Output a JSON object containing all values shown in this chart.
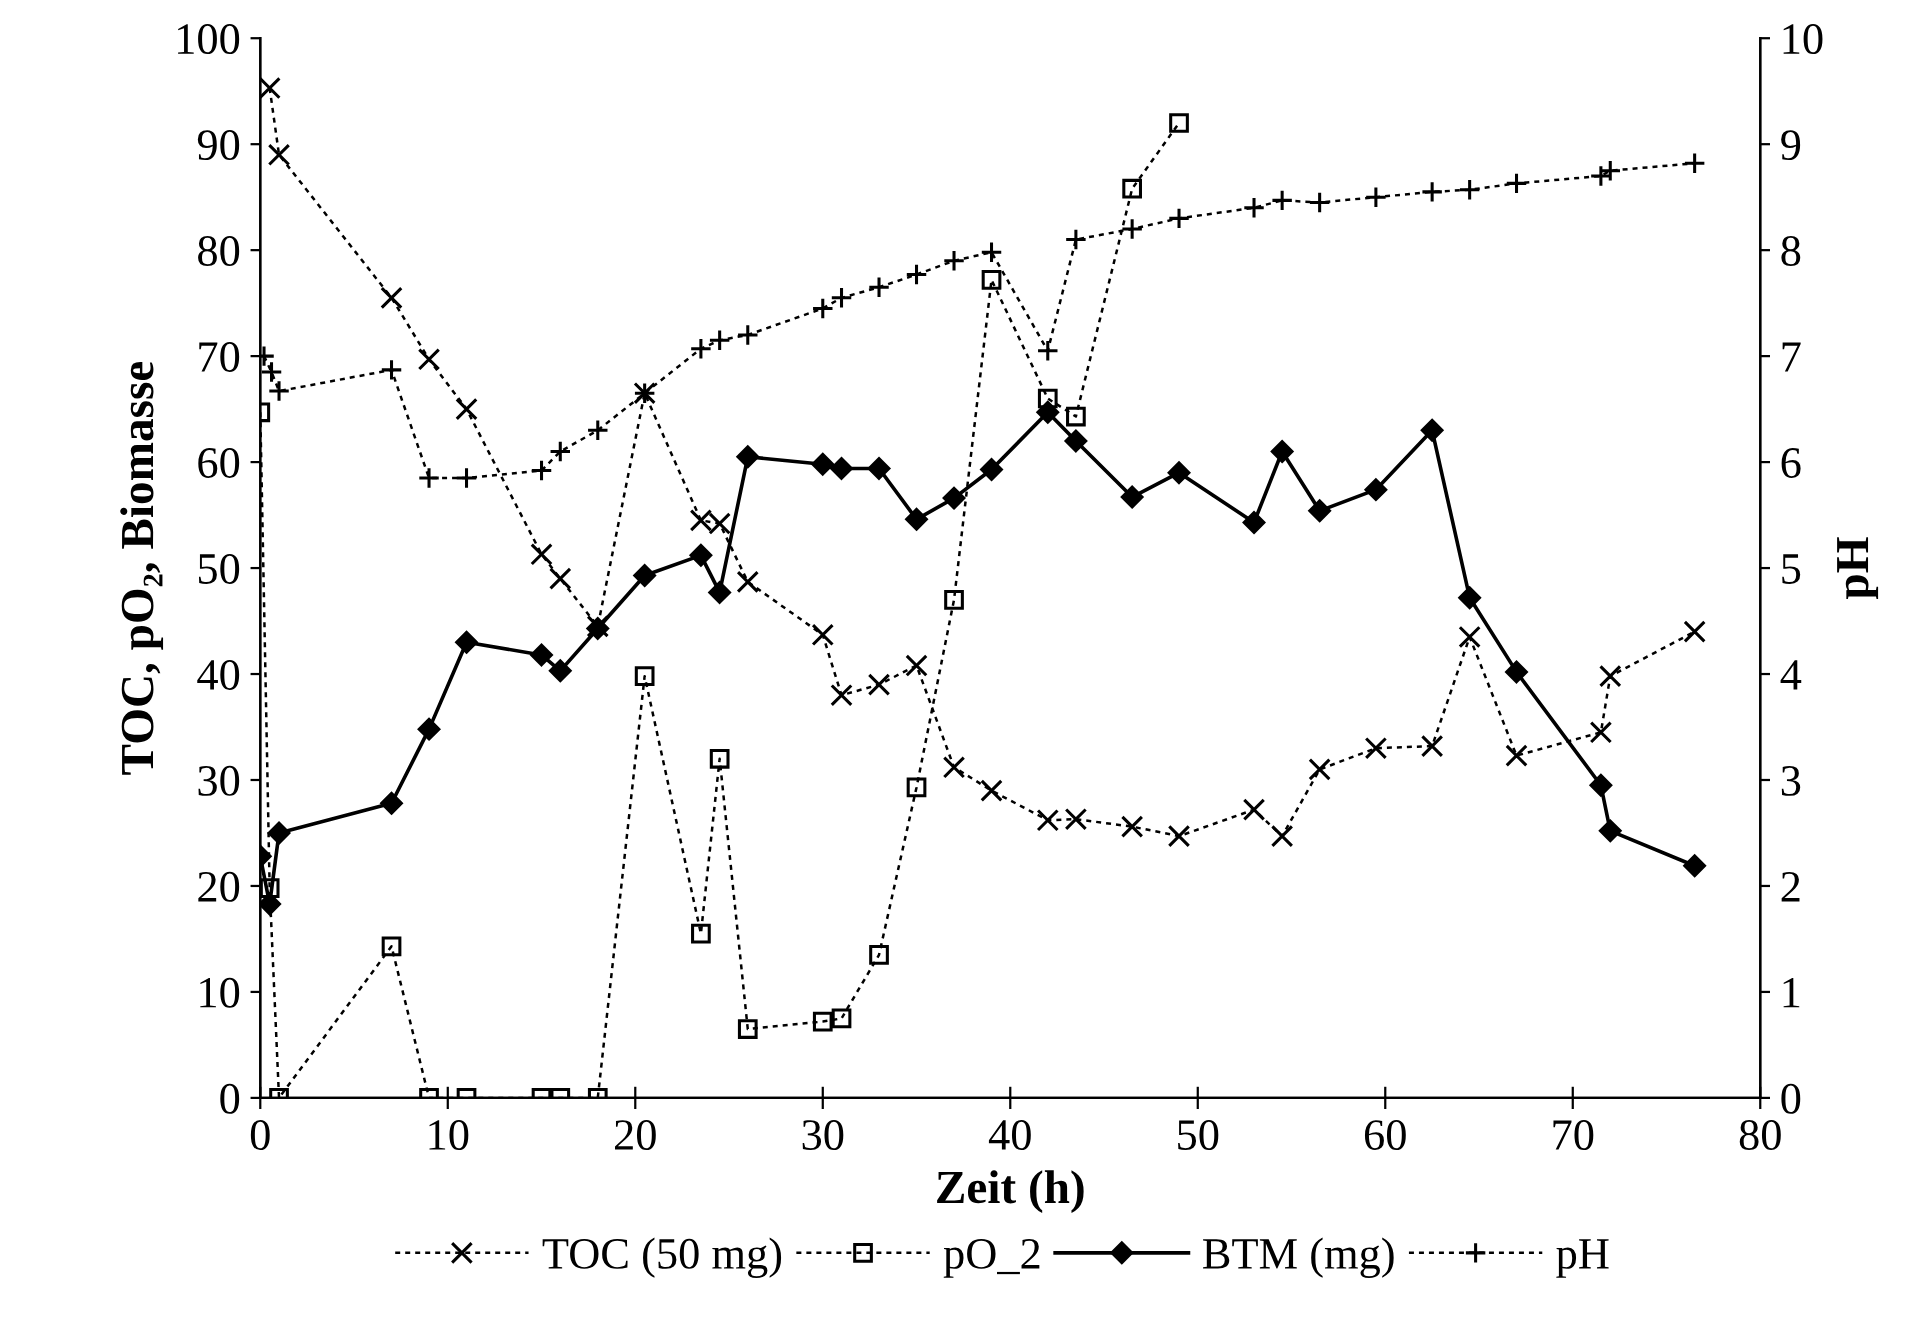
{
  "chart_data": {
    "type": "line",
    "xlabel": "Zeit (h)",
    "ylabel": "TOC, pO₂, Biomasse",
    "y2label": "pH",
    "xlim": [
      0,
      80
    ],
    "xticks": [
      0,
      10,
      20,
      30,
      40,
      50,
      60,
      70,
      80
    ],
    "ylim": [
      0,
      100
    ],
    "yticks": [
      0,
      10,
      20,
      30,
      40,
      50,
      60,
      70,
      80,
      90,
      100
    ],
    "y2lim": [
      0,
      10
    ],
    "y2ticks": [
      0,
      1,
      2,
      3,
      4,
      5,
      6,
      7,
      8,
      9,
      10
    ],
    "grid": false,
    "legend": "bottom",
    "series": [
      {
        "name": "TOC (50 mg)",
        "color": "#000000",
        "marker": "cross",
        "line_style": "dotted",
        "x": [
          0.5,
          1,
          7,
          9,
          11,
          15,
          16,
          18,
          20.5,
          23.5,
          24.5,
          26,
          30,
          31,
          33,
          35,
          37,
          39,
          42,
          43.5,
          46.5,
          49,
          53,
          54.5,
          56.5,
          59.5,
          62.5,
          64.5,
          67,
          71.5,
          72,
          76.5
        ],
        "values": [
          95.3,
          89,
          75.5,
          69.7,
          65,
          51.3,
          49,
          44.5,
          66.5,
          54.5,
          54.2,
          48.7,
          43.7,
          38,
          39,
          40.8,
          31.2,
          29,
          26.2,
          26.3,
          25.6,
          24.7,
          27.2,
          24.7,
          31,
          33,
          33.2,
          43.5,
          32.3,
          34.5,
          39.8,
          44
        ]
      },
      {
        "name": "pO_2",
        "color": "#000000",
        "marker": "square",
        "line_style": "dotted",
        "x": [
          0,
          0.5,
          1,
          7,
          9,
          11,
          15,
          16,
          18,
          20.5,
          23.5,
          24.5,
          26,
          30,
          31,
          33,
          35,
          37,
          39,
          42,
          43.5,
          46.5,
          49
        ],
        "values": [
          64.7,
          19.8,
          0,
          14.3,
          0,
          0,
          0,
          0,
          0,
          39.8,
          15.5,
          32,
          6.5,
          7.2,
          7.5,
          13.5,
          29.3,
          47,
          77.2,
          66,
          64.3,
          85.8,
          92
        ]
      },
      {
        "name": "BTM (mg)",
        "color": "#000000",
        "marker": "diamond",
        "line_style": "solid",
        "x": [
          0,
          0.5,
          1,
          7,
          9,
          11,
          15,
          16,
          18,
          20.5,
          23.5,
          24.5,
          26,
          30,
          31,
          33,
          35,
          37,
          39,
          42,
          43.5,
          46.5,
          49,
          53,
          54.5,
          56.5,
          59.5,
          62.5,
          64.5,
          67,
          71.5,
          72,
          76.5
        ],
        "values": [
          22.8,
          18.3,
          25,
          27.8,
          34.8,
          43,
          41.8,
          40.3,
          44.3,
          49.3,
          51.2,
          47.7,
          60.5,
          59.8,
          59.4,
          59.4,
          54.6,
          56.6,
          59.3,
          64.7,
          62,
          56.7,
          59,
          54.3,
          61,
          55.4,
          57.4,
          63,
          47.2,
          40.2,
          29.5,
          25.2,
          21.9
        ]
      },
      {
        "name": "pH",
        "color": "#000000",
        "marker": "plus",
        "line_style": "dotted",
        "axis": "y2",
        "x": [
          0.2,
          0.6,
          1,
          7,
          9,
          11,
          15,
          16,
          18,
          20.5,
          23.5,
          24.5,
          26,
          30,
          31,
          33,
          35,
          37,
          39,
          42,
          43.5,
          46.5,
          49,
          53,
          54.5,
          56.5,
          59.5,
          62.5,
          64.5,
          67,
          71.5,
          72,
          76.5
        ],
        "values": [
          7.0,
          6.85,
          6.67,
          6.87,
          5.85,
          5.85,
          5.92,
          6.1,
          6.3,
          6.65,
          7.07,
          7.15,
          7.2,
          7.45,
          7.55,
          7.65,
          7.77,
          7.9,
          7.98,
          7.05,
          8.1,
          8.2,
          8.3,
          8.4,
          8.47,
          8.45,
          8.5,
          8.55,
          8.57,
          8.63,
          8.7,
          8.75,
          8.82
        ]
      }
    ]
  }
}
